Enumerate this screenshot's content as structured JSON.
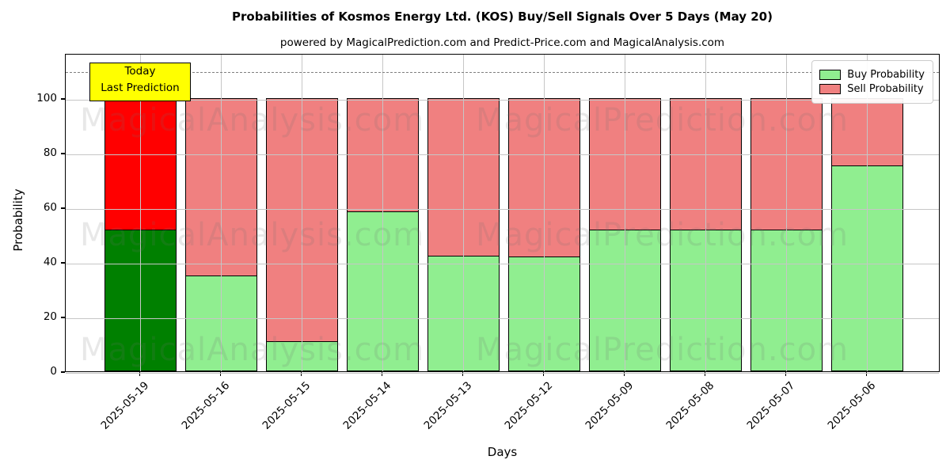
{
  "title": "Probabilities of Kosmos Energy Ltd. (KOS) Buy/Sell Signals Over 5 Days (May 20)",
  "subtitle": "powered by MagicalPrediction.com and Predict-Price.com and MagicalAnalysis.com",
  "annotation": {
    "line1": "Today",
    "line2": "Last Prediction",
    "bg_color": "#ffff00"
  },
  "legend": {
    "items": [
      {
        "label": "Buy Probability",
        "color": "#90ee90"
      },
      {
        "label": "Sell Probability",
        "color": "#f08080"
      }
    ]
  },
  "watermarks": {
    "left_text": "MagicalAnalysis.com",
    "right_text": "MagicalPrediction.com"
  },
  "axes": {
    "xlabel": "Days",
    "ylabel": "Probability",
    "yticks": [
      0,
      20,
      40,
      60,
      80,
      100
    ],
    "ylim": [
      0,
      116.5
    ],
    "dashed_threshold": 110,
    "grid": true
  },
  "chart_data": {
    "type": "bar",
    "stacked": true,
    "title": "Probabilities of Kosmos Energy Ltd. (KOS) Buy/Sell Signals Over 5 Days (May 20)",
    "xlabel": "Days",
    "ylabel": "Probability",
    "ylim": [
      0,
      116.5
    ],
    "legend_position": "upper right",
    "grid": true,
    "categories": [
      "2025-05-19",
      "2025-05-16",
      "2025-05-15",
      "2025-05-14",
      "2025-05-13",
      "2025-05-12",
      "2025-05-09",
      "2025-05-08",
      "2025-05-07",
      "2025-05-06"
    ],
    "series": [
      {
        "name": "Buy Probability",
        "values": [
          52,
          35,
          11,
          58.5,
          42.5,
          42,
          52,
          52,
          52,
          75.5
        ],
        "color": "#90ee90",
        "highlight_color": "#008000"
      },
      {
        "name": "Sell Probability",
        "values": [
          48,
          65,
          89,
          41.5,
          57.5,
          58,
          48,
          48,
          48,
          24.5
        ],
        "color": "#f08080",
        "highlight_color": "#ff0000"
      }
    ],
    "highlight_index": 0,
    "highlight_label": "Today Last Prediction",
    "bar_edge_color": "#000000",
    "dashed_threshold": 110
  }
}
